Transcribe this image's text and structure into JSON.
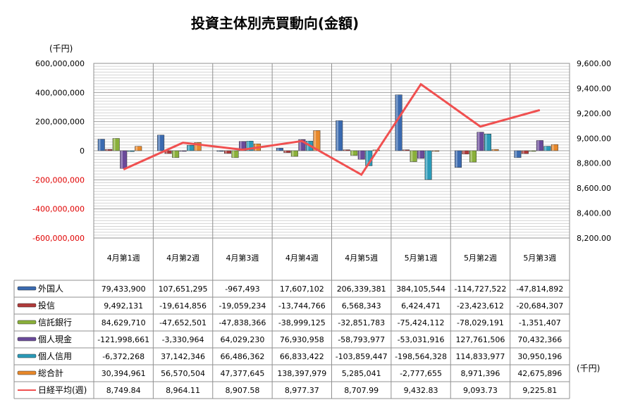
{
  "chart_data": {
    "type": "bar",
    "title": "投資主体別売買動向(金額)",
    "ylabel_left": "(千円)",
    "unit_right": "(千円)",
    "categories": [
      "4月第1週",
      "4月第2週",
      "4月第3週",
      "4月第4週",
      "4月第5週",
      "5月第1週",
      "5月第2週",
      "5月第3週"
    ],
    "ylim_left": [
      -600000000,
      600000000
    ],
    "ylim_right": [
      8200,
      9600
    ],
    "left_ticks": [
      600000000,
      400000000,
      200000000,
      0,
      -200000000,
      -400000000,
      -600000000
    ],
    "left_tick_labels": [
      "600,000,000",
      "400,000,000",
      "200,000,000",
      "0",
      "-200,000,000",
      "-400,000,000",
      "-600,000,000"
    ],
    "right_ticks": [
      9600,
      9400,
      9200,
      9000,
      8800,
      8600,
      8400,
      8200
    ],
    "right_tick_labels": [
      "9,600.00",
      "9,400.00",
      "9,200.00",
      "9,000.00",
      "8,800.00",
      "8,600.00",
      "8,400.00",
      "8,200.00"
    ],
    "grid": true,
    "legend": "table-bottom",
    "negative_tick_color": "#e00000",
    "series": [
      {
        "name": "外国人",
        "kind": "bar",
        "axis": "left",
        "color": "#3a6ab0",
        "values": [
          79433900,
          107651295,
          -967493,
          17607102,
          206339381,
          384105544,
          -114727522,
          -47814892
        ],
        "labels": [
          "79,433,900",
          "107,651,295",
          "-967,493",
          "17,607,102",
          "206,339,381",
          "384,105,544",
          "-114,727,522",
          "-47,814,892"
        ]
      },
      {
        "name": "投信",
        "kind": "bar",
        "axis": "left",
        "color": "#b03a3a",
        "values": [
          9492131,
          -19614856,
          -19059234,
          -13744766,
          6568343,
          6424471,
          -23423612,
          -20684307
        ],
        "labels": [
          "9,492,131",
          "-19,614,856",
          "-19,059,234",
          "-13,744,766",
          "6,568,343",
          "6,424,471",
          "-23,423,612",
          "-20,684,307"
        ]
      },
      {
        "name": "信託銀行",
        "kind": "bar",
        "axis": "left",
        "color": "#8ab03a",
        "values": [
          84629710,
          -47652501,
          -47838366,
          -38999125,
          -32851783,
          -75424112,
          -78029191,
          -1351407
        ],
        "labels": [
          "84,629,710",
          "-47,652,501",
          "-47,838,366",
          "-38,999,125",
          "-32,851,783",
          "-75,424,112",
          "-78,029,191",
          "-1,351,407"
        ]
      },
      {
        "name": "個人現金",
        "kind": "bar",
        "axis": "left",
        "color": "#6a4a9a",
        "values": [
          -121998661,
          -3330964,
          64029230,
          76930958,
          -58793977,
          -53031916,
          127761506,
          70432366
        ],
        "labels": [
          "-121,998,661",
          "-3,330,964",
          "64,029,230",
          "76,930,958",
          "-58,793,977",
          "-53,031,916",
          "127,761,506",
          "70,432,366"
        ]
      },
      {
        "name": "個人信用",
        "kind": "bar",
        "axis": "left",
        "color": "#2a9ab8",
        "values": [
          -6372268,
          37142346,
          66486362,
          66833422,
          -103859447,
          -198564328,
          114833977,
          30950196
        ],
        "labels": [
          "-6,372,268",
          "37,142,346",
          "66,486,362",
          "66,833,422",
          "-103,859,447",
          "-198,564,328",
          "114,833,977",
          "30,950,196"
        ]
      },
      {
        "name": "総合計",
        "kind": "bar",
        "axis": "left",
        "color": "#e8882a",
        "values": [
          30394961,
          56570504,
          47377645,
          138397979,
          5285041,
          -2777655,
          8971396,
          42675896
        ],
        "labels": [
          "30,394,961",
          "56,570,504",
          "47,377,645",
          "138,397,979",
          "5,285,041",
          "-2,777,655",
          "8,971,396",
          "42,675,896"
        ]
      },
      {
        "name": "日経平均(週)",
        "kind": "line",
        "axis": "right",
        "color": "#f05050",
        "values": [
          8749.84,
          8964.11,
          8907.58,
          8977.37,
          8707.99,
          9432.83,
          9093.73,
          9225.81
        ],
        "labels": [
          "8,749.84",
          "8,964.11",
          "8,907.58",
          "8,977.37",
          "8,707.99",
          "9,432.83",
          "9,093.73",
          "9,225.81"
        ]
      }
    ]
  }
}
